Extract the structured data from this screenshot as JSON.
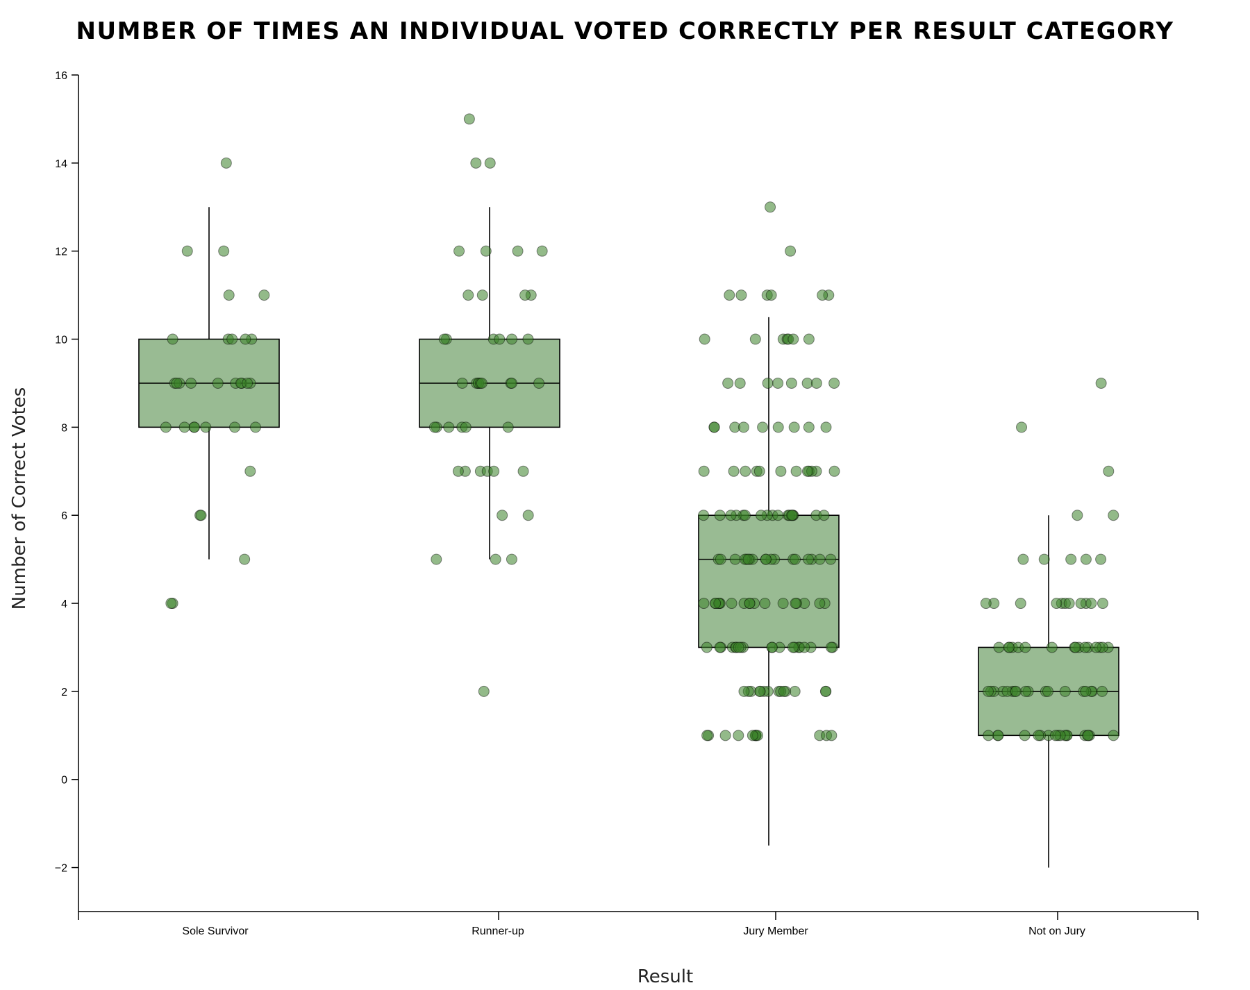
{
  "chart_data": {
    "type": "box",
    "title": "NUMBER OF TIMES AN INDIVIDUAL VOTED CORRECTLY PER RESULT CATEGORY",
    "xlabel": "Result",
    "ylabel": "Number of Correct Votes",
    "ylim": [
      -3,
      16
    ],
    "yticks": [
      -2,
      0,
      2,
      4,
      6,
      8,
      10,
      12,
      14,
      16
    ],
    "grid": false,
    "categories": [
      "Sole Survivor",
      "Runner-up",
      "Jury Member",
      "Not on Jury"
    ],
    "boxes": [
      {
        "category": "Sole Survivor",
        "q1": 8,
        "median": 9,
        "q3": 10,
        "whisker_low": 5,
        "whisker_high": 13
      },
      {
        "category": "Runner-up",
        "q1": 8,
        "median": 9,
        "q3": 10,
        "whisker_low": 5,
        "whisker_high": 13
      },
      {
        "category": "Jury Member",
        "q1": 3,
        "median": 5,
        "q3": 6,
        "whisker_low": -1.5,
        "whisker_high": 10.5
      },
      {
        "category": "Not on Jury",
        "q1": 1,
        "median": 2,
        "q3": 3,
        "whisker_low": -2,
        "whisker_high": 6
      }
    ],
    "points": [
      {
        "category": "Sole Survivor",
        "values": [
          14,
          12,
          12,
          11,
          11,
          10,
          10,
          10,
          10,
          10,
          9,
          9,
          9,
          9,
          9,
          9,
          9,
          9,
          9,
          9,
          8,
          8,
          8,
          8,
          8,
          8,
          8,
          7,
          6,
          6,
          5,
          4,
          4
        ]
      },
      {
        "category": "Runner-up",
        "values": [
          15,
          14,
          14,
          12,
          12,
          12,
          12,
          11,
          11,
          11,
          11,
          10,
          10,
          10,
          10,
          10,
          10,
          9,
          9,
          9,
          9,
          9,
          9,
          9,
          9,
          9,
          8,
          8,
          8,
          8,
          8,
          8,
          7,
          7,
          7,
          7,
          7,
          7,
          6,
          6,
          5,
          5,
          5,
          2
        ]
      },
      {
        "category": "Jury Member",
        "values": [
          13,
          12,
          11,
          11,
          11,
          11,
          11,
          11,
          10,
          10,
          10,
          10,
          10,
          10,
          10,
          9,
          9,
          9,
          9,
          9,
          9,
          9,
          9,
          8,
          8,
          8,
          8,
          8,
          8,
          8,
          8,
          8,
          7,
          7,
          7,
          7,
          7,
          7,
          7,
          7,
          7,
          7,
          7,
          7,
          6,
          6,
          6,
          6,
          6,
          6,
          6,
          6,
          6,
          6,
          6,
          6,
          6,
          6,
          6,
          6,
          6,
          6,
          5,
          5,
          5,
          5,
          5,
          5,
          5,
          5,
          5,
          5,
          5,
          5,
          5,
          5,
          5,
          5,
          5,
          5,
          4,
          4,
          4,
          4,
          4,
          4,
          4,
          4,
          4,
          4,
          4,
          4,
          4,
          4,
          4,
          4,
          4,
          4,
          3,
          3,
          3,
          3,
          3,
          3,
          3,
          3,
          3,
          3,
          3,
          3,
          3,
          3,
          3,
          3,
          3,
          3,
          3,
          3,
          2,
          2,
          2,
          2,
          2,
          2,
          2,
          2,
          2,
          2,
          2,
          2,
          2,
          2,
          1,
          1,
          1,
          1,
          1,
          1,
          1,
          1,
          1,
          1,
          1,
          1
        ]
      },
      {
        "category": "Not on Jury",
        "values": [
          9,
          8,
          7,
          6,
          6,
          5,
          5,
          5,
          5,
          5,
          4,
          4,
          4,
          4,
          4,
          4,
          4,
          4,
          4,
          4,
          4,
          3,
          3,
          3,
          3,
          3,
          3,
          3,
          3,
          3,
          3,
          3,
          3,
          3,
          3,
          3,
          3,
          2,
          2,
          2,
          2,
          2,
          2,
          2,
          2,
          2,
          2,
          2,
          2,
          2,
          2,
          2,
          2,
          2,
          2,
          1,
          1,
          1,
          1,
          1,
          1,
          1,
          1,
          1,
          1,
          1,
          1,
          1,
          1,
          1,
          1,
          1,
          1
        ]
      }
    ],
    "colors": {
      "box_fill": "#99bb93",
      "point_fill": "#3a8228",
      "stroke": "#000000"
    }
  }
}
